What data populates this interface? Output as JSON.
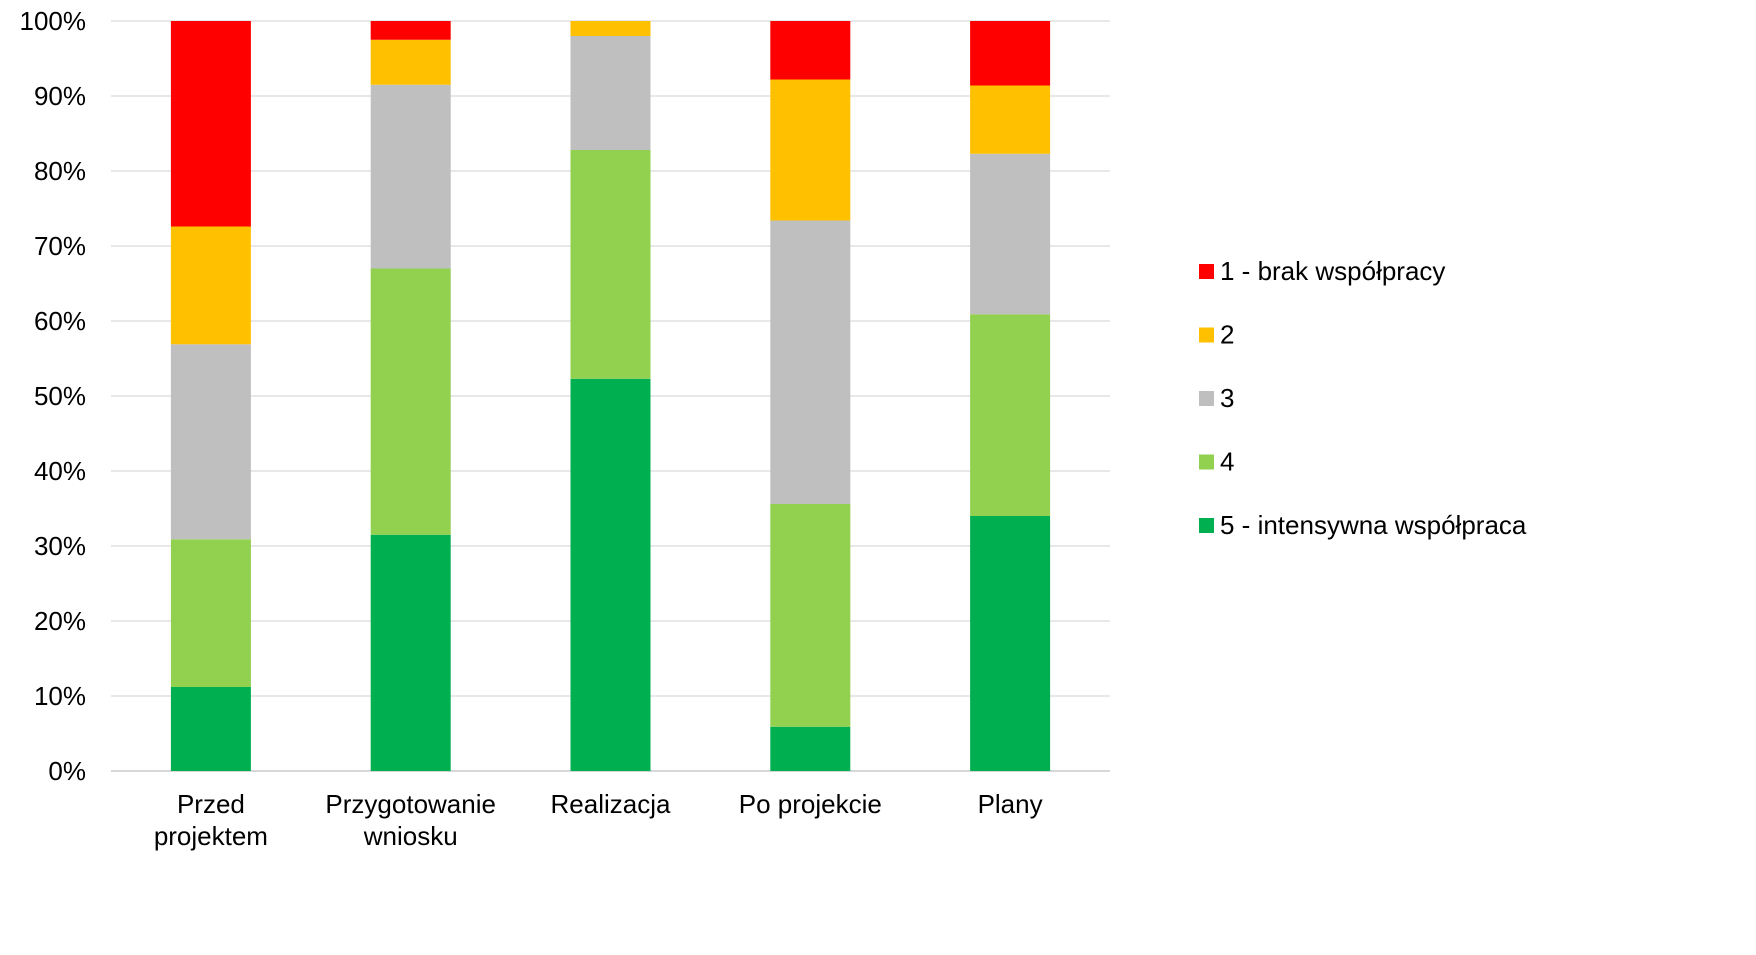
{
  "chart_data": {
    "type": "bar",
    "stacked": true,
    "percent": true,
    "categories": [
      [
        "Przed",
        "projektem"
      ],
      [
        "Przygotowanie",
        "wniosku"
      ],
      [
        "Realizacja"
      ],
      [
        "Po projekcie"
      ],
      [
        "Plany"
      ]
    ],
    "series": [
      {
        "name": "5 - intensywna współpraca",
        "color": "#00B050",
        "values": [
          11.2,
          31.5,
          52.3,
          5.9,
          34.0
        ]
      },
      {
        "name": "4",
        "color": "#92D050",
        "values": [
          19.7,
          35.5,
          30.5,
          29.7,
          26.9
        ]
      },
      {
        "name": "3",
        "color": "#BFBFBF",
        "values": [
          26.0,
          24.5,
          15.2,
          37.8,
          21.4
        ]
      },
      {
        "name": "2",
        "color": "#FFC000",
        "values": [
          15.7,
          6.0,
          2.0,
          18.8,
          9.1
        ]
      },
      {
        "name": "1 - brak współpracy",
        "color": "#FF0000",
        "values": [
          27.4,
          2.5,
          0.0,
          7.8,
          8.6
        ]
      }
    ],
    "ylim": [
      0,
      100
    ],
    "yticks": [
      "0%",
      "10%",
      "20%",
      "30%",
      "40%",
      "50%",
      "60%",
      "70%",
      "80%",
      "90%",
      "100%"
    ],
    "grid": true,
    "legend_position": "right",
    "legend_order": [
      "1 - brak współpracy",
      "2",
      "3",
      "4",
      "5 - intensywna współpraca"
    ],
    "title": "",
    "xlabel": "",
    "ylabel": ""
  }
}
